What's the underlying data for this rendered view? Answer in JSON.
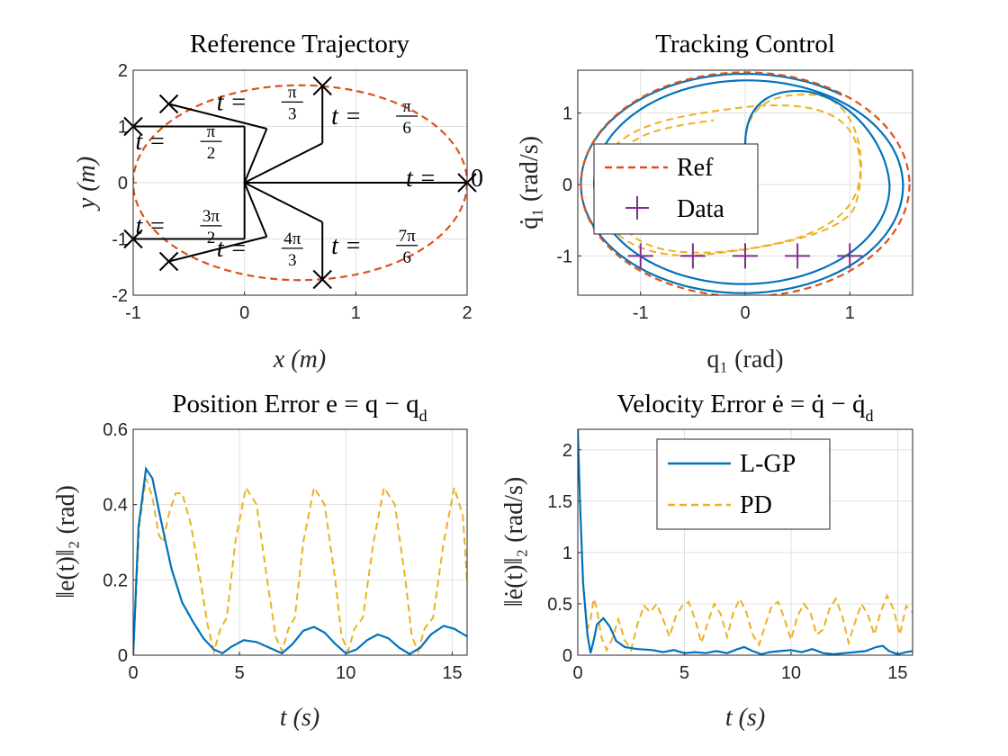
{
  "figure": {
    "width": 1120,
    "height": 840
  },
  "colors": {
    "blue": "#0072BD",
    "orange": "#D95319",
    "yellow": "#EDB120",
    "purple": "#7E2F8E"
  },
  "chart_data": [
    {
      "id": "ref",
      "type": "line",
      "title": "Reference Trajectory",
      "xlabel": "x (m)",
      "ylabel": "y (m)",
      "xlim": [
        -1,
        2
      ],
      "ylim": [
        -2,
        2
      ],
      "xticks": [
        -1,
        0,
        1,
        2
      ],
      "xtick_labels": [
        "-1",
        "0",
        "1",
        "2"
      ],
      "yticks": [
        -2,
        -1,
        0,
        1,
        2
      ],
      "ytick_labels": [
        "-2",
        "-1",
        "0",
        "1",
        "2"
      ],
      "grid": true,
      "ellipse": {
        "cx": 0.5,
        "cy": 0,
        "rx": 1.5,
        "ry": 1.732
      },
      "markers": [
        [
          2,
          0
        ],
        [
          0.7,
          1.72
        ],
        [
          -0.68,
          1.4
        ],
        [
          -1,
          1
        ],
        [
          -1,
          -1
        ],
        [
          -0.68,
          -1.4
        ],
        [
          0.7,
          -1.72
        ]
      ],
      "arm_points": [
        [
          0.7,
          0.7
        ],
        [
          0.2,
          0.96
        ],
        [
          0,
          1
        ],
        [
          0,
          -1
        ],
        [
          0.2,
          -0.96
        ],
        [
          0.7,
          -0.7
        ]
      ],
      "annotations": [
        {
          "lhs": "t =",
          "num": "",
          "den": "",
          "plain": "0",
          "x": 1.45,
          "y": 0.1
        },
        {
          "lhs": "t =",
          "num": "π",
          "den": "6",
          "plain": "",
          "x": 0.78,
          "y": 1.2
        },
        {
          "lhs": "t =",
          "num": "π",
          "den": "3",
          "plain": "",
          "x": -0.25,
          "y": 1.45
        },
        {
          "lhs": "t =",
          "num": "π",
          "den": "2",
          "plain": "",
          "x": -0.98,
          "y": 0.75
        },
        {
          "lhs": "t =",
          "num": "3π",
          "den": "2",
          "plain": "",
          "x": -0.98,
          "y": -0.75
        },
        {
          "lhs": "t =",
          "num": "4π",
          "den": "3",
          "plain": "",
          "x": -0.25,
          "y": -1.15
        },
        {
          "lhs": "t =",
          "num": "7π",
          "den": "6",
          "plain": "",
          "x": 0.78,
          "y": -1.1
        }
      ]
    },
    {
      "id": "track",
      "type": "line",
      "title": "Tracking Control",
      "xlabel": "q₁ (rad)",
      "ylabel": "q̇₁ (rad/s)",
      "xlim": [
        -1.6,
        1.6
      ],
      "ylim": [
        -1.55,
        1.6
      ],
      "xticks": [
        -1,
        0,
        1
      ],
      "xtick_labels": [
        "-1",
        "0",
        "1"
      ],
      "yticks": [
        -1,
        0,
        1
      ],
      "ytick_labels": [
        "-1",
        "0",
        "1"
      ],
      "grid": true,
      "legend": {
        "position": "left",
        "entries": [
          "Ref",
          "Data"
        ]
      },
      "ref_ellipse": {
        "rx": 1.57,
        "ry": 1.57
      },
      "data_points": {
        "x": [
          -1,
          -0.5,
          0,
          0.5,
          1
        ],
        "y": [
          -1,
          -1,
          -1,
          -1,
          -1
        ]
      }
    },
    {
      "id": "pos",
      "type": "line",
      "title": "Position Error e = q − q",
      "title_sub": "d",
      "xlabel": "t (s)",
      "ylabel": "‖e(t)‖₂ (rad)",
      "xlim": [
        0,
        15.7
      ],
      "ylim": [
        0,
        0.6
      ],
      "xticks": [
        0,
        5,
        10,
        15
      ],
      "xtick_labels": [
        "0",
        "5",
        "10",
        "15"
      ],
      "yticks": [
        0,
        0.2,
        0.4,
        0.6
      ],
      "ytick_labels": [
        "0",
        "0.2",
        "0.4",
        "0.6"
      ],
      "grid": true,
      "series": [
        {
          "id": "lgp",
          "style": "solid",
          "x": [
            0,
            0.25,
            0.6,
            0.9,
            1.3,
            1.8,
            2.3,
            2.8,
            3.3,
            3.8,
            4.2,
            4.6,
            5.2,
            5.8,
            6.4,
            7.0,
            7.5,
            8.0,
            8.5,
            9.0,
            9.5,
            10.0,
            10.5,
            11.0,
            11.5,
            12.0,
            12.5,
            13.0,
            13.5,
            14.0,
            14.6,
            15.1,
            15.7
          ],
          "y": [
            0,
            0.34,
            0.495,
            0.47,
            0.36,
            0.23,
            0.14,
            0.09,
            0.045,
            0.015,
            0.005,
            0.022,
            0.04,
            0.035,
            0.02,
            0.005,
            0.03,
            0.065,
            0.075,
            0.06,
            0.03,
            0.005,
            0.015,
            0.04,
            0.055,
            0.045,
            0.02,
            0.003,
            0.02,
            0.055,
            0.078,
            0.07,
            0.05
          ]
        },
        {
          "id": "pd",
          "style": "dashed",
          "x": [
            0,
            0.3,
            0.6,
            0.9,
            1.2,
            1.4,
            1.7,
            2.0,
            2.3,
            2.7,
            3.1,
            3.5,
            3.8,
            4.1,
            4.4,
            4.8,
            5.3,
            5.8,
            6.3,
            6.7,
            7.0,
            7.3,
            7.6,
            8.0,
            8.5,
            9.0,
            9.5,
            9.8,
            10.1,
            10.4,
            10.8,
            11.3,
            11.8,
            12.3,
            12.8,
            13.1,
            13.4,
            13.7,
            14.1,
            14.6,
            15.1,
            15.5,
            15.7
          ],
          "y": [
            0,
            0.35,
            0.47,
            0.42,
            0.32,
            0.3,
            0.38,
            0.43,
            0.43,
            0.35,
            0.22,
            0.08,
            0.01,
            0.07,
            0.1,
            0.3,
            0.445,
            0.4,
            0.2,
            0.05,
            0.01,
            0.07,
            0.1,
            0.3,
            0.445,
            0.4,
            0.2,
            0.05,
            0.01,
            0.07,
            0.1,
            0.3,
            0.445,
            0.4,
            0.2,
            0.05,
            0.01,
            0.07,
            0.1,
            0.3,
            0.445,
            0.37,
            0.2
          ]
        }
      ]
    },
    {
      "id": "vel",
      "type": "line",
      "title": "Velocity Error ė = q̇ − q̇",
      "title_sub": "d",
      "xlabel": "t (s)",
      "ylabel": "‖ė(t)‖₂ (rad/s)",
      "xlim": [
        0,
        15.7
      ],
      "ylim": [
        0,
        2.2
      ],
      "xticks": [
        0,
        5,
        10,
        15
      ],
      "xtick_labels": [
        "0",
        "5",
        "10",
        "15"
      ],
      "yticks": [
        0,
        0.5,
        1,
        1.5,
        2
      ],
      "ytick_labels": [
        "0",
        "0.5",
        "1",
        "1.5",
        "2"
      ],
      "grid": true,
      "legend": {
        "position": "top-center",
        "entries": [
          "L-GP",
          "PD"
        ]
      },
      "series": [
        {
          "id": "lgp",
          "style": "solid",
          "x": [
            0,
            0.1,
            0.25,
            0.45,
            0.6,
            0.75,
            0.9,
            1.2,
            1.5,
            1.8,
            2.2,
            2.8,
            3.5,
            4.0,
            4.5,
            5.0,
            5.5,
            6.0,
            6.5,
            7.0,
            7.5,
            7.8,
            8.2,
            8.6,
            9.0,
            9.5,
            10.0,
            10.5,
            11.0,
            11.5,
            12.0,
            12.5,
            13.0,
            13.5,
            14.0,
            14.3,
            14.6,
            15.0,
            15.4,
            15.7
          ],
          "y": [
            2.2,
            1.5,
            0.7,
            0.2,
            0.02,
            0.15,
            0.3,
            0.36,
            0.28,
            0.14,
            0.08,
            0.06,
            0.05,
            0.03,
            0.05,
            0.02,
            0.03,
            0.02,
            0.04,
            0.02,
            0.06,
            0.08,
            0.04,
            0.01,
            0.03,
            0.04,
            0.05,
            0.03,
            0.06,
            0.02,
            0.01,
            0.02,
            0.03,
            0.04,
            0.08,
            0.09,
            0.04,
            0.01,
            0.03,
            0.04
          ]
        },
        {
          "id": "pd",
          "style": "dashed",
          "x": [
            0,
            0.1,
            0.25,
            0.45,
            0.6,
            0.75,
            0.9,
            1.1,
            1.35,
            1.6,
            1.9,
            2.2,
            2.5,
            2.8,
            3.1,
            3.4,
            3.7,
            4.0,
            4.3,
            4.6,
            4.9,
            5.2,
            5.5,
            5.8,
            6.1,
            6.4,
            6.7,
            7.0,
            7.3,
            7.6,
            7.9,
            8.2,
            8.5,
            8.8,
            9.1,
            9.4,
            9.7,
            10.0,
            10.3,
            10.6,
            10.9,
            11.2,
            11.5,
            11.8,
            12.1,
            12.4,
            12.7,
            13.0,
            13.3,
            13.6,
            13.9,
            14.2,
            14.5,
            14.8,
            15.1,
            15.4,
            15.7
          ],
          "y": [
            2.2,
            1.5,
            0.7,
            0.25,
            0.35,
            0.55,
            0.45,
            0.18,
            0.05,
            0.15,
            0.35,
            0.15,
            0.05,
            0.3,
            0.48,
            0.42,
            0.5,
            0.35,
            0.18,
            0.38,
            0.48,
            0.52,
            0.35,
            0.12,
            0.32,
            0.5,
            0.4,
            0.18,
            0.42,
            0.55,
            0.42,
            0.2,
            0.1,
            0.3,
            0.48,
            0.52,
            0.35,
            0.15,
            0.38,
            0.5,
            0.42,
            0.2,
            0.25,
            0.45,
            0.55,
            0.38,
            0.12,
            0.32,
            0.5,
            0.4,
            0.2,
            0.42,
            0.58,
            0.45,
            0.2,
            0.48,
            0.42
          ]
        }
      ]
    }
  ]
}
